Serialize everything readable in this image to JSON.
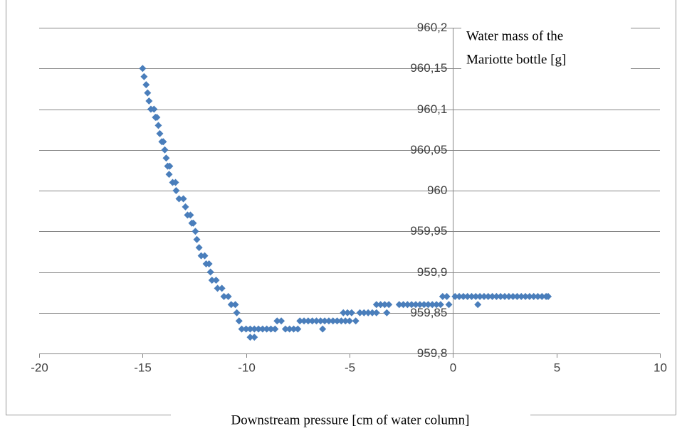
{
  "chart_data": {
    "type": "scatter",
    "x_label": "Downstream pressure [cm of water column]",
    "y_label": [
      "Water mass of the",
      "Mariotte bottle [g]"
    ],
    "color": "#4a7ebb",
    "xlim": [
      -20,
      10
    ],
    "xticks": [
      -20,
      -15,
      -10,
      -5,
      0,
      5,
      10
    ],
    "ylim": [
      959.8,
      960.2
    ],
    "yticks": [
      {
        "value": 959.8,
        "label": "959,8"
      },
      {
        "value": 959.85,
        "label": "959,85"
      },
      {
        "value": 959.9,
        "label": "959,9"
      },
      {
        "value": 959.95,
        "label": "959,95"
      },
      {
        "value": 960,
        "label": "960"
      },
      {
        "value": 960.05,
        "label": "960,05"
      },
      {
        "value": 960.1,
        "label": "960,1"
      },
      {
        "value": 960.15,
        "label": "960,15"
      },
      {
        "value": 960.2,
        "label": "960,2"
      }
    ],
    "grid": true,
    "x": [
      -15.0,
      -14.93,
      -14.83,
      -14.76,
      -14.69,
      -14.6,
      -14.45,
      -14.38,
      -14.31,
      -14.24,
      -14.17,
      -14.07,
      -14.0,
      -13.93,
      -13.86,
      -13.79,
      -13.69,
      -13.72,
      -13.55,
      -13.41,
      -13.38,
      -13.24,
      -13.03,
      -12.93,
      -12.83,
      -12.69,
      -12.62,
      -12.55,
      -12.45,
      -12.38,
      -12.27,
      -12.17,
      -12.0,
      -11.93,
      -11.79,
      -11.72,
      -11.65,
      -11.45,
      -11.38,
      -11.17,
      -11.07,
      -10.86,
      -10.72,
      -10.52,
      -10.45,
      -10.34,
      -10.21,
      -10.0,
      -9.8,
      -9.6,
      -9.8,
      -9.6,
      -9.4,
      -9.2,
      -9.0,
      -8.8,
      -8.6,
      -8.1,
      -7.9,
      -7.7,
      -7.5,
      -6.3,
      -8.5,
      -8.3,
      -7.4,
      -7.2,
      -7.0,
      -6.8,
      -6.6,
      -6.4,
      -6.2,
      -6.0,
      -5.8,
      -5.6,
      -5.4,
      -5.2,
      -5.0,
      -4.7,
      -5.3,
      -5.1,
      -4.9,
      -4.5,
      -4.3,
      -4.1,
      -3.9,
      -3.7,
      -3.2,
      -3.7,
      -3.5,
      -3.3,
      -3.1,
      -2.6,
      -2.4,
      -2.2,
      -2.0,
      -1.8,
      -1.6,
      -1.4,
      -1.2,
      -1.0,
      -0.8,
      -0.6,
      -0.2,
      1.2,
      -0.5,
      -0.3,
      0.1,
      0.3,
      0.5,
      0.7,
      0.9,
      1.1,
      1.3,
      1.5,
      1.7,
      1.9,
      2.1,
      2.3,
      2.5,
      2.7,
      2.9,
      3.1,
      3.3,
      3.5,
      3.7,
      3.9,
      4.1,
      4.3,
      4.5,
      4.6
    ],
    "values": [
      960.15,
      960.14,
      960.13,
      960.12,
      960.11,
      960.1,
      960.1,
      960.09,
      960.09,
      960.08,
      960.07,
      960.06,
      960.06,
      960.05,
      960.04,
      960.03,
      960.03,
      960.02,
      960.01,
      960.01,
      960.0,
      959.99,
      959.99,
      959.98,
      959.97,
      959.97,
      959.96,
      959.96,
      959.95,
      959.94,
      959.93,
      959.92,
      959.92,
      959.91,
      959.91,
      959.9,
      959.89,
      959.89,
      959.88,
      959.88,
      959.87,
      959.87,
      959.86,
      959.86,
      959.85,
      959.84,
      959.83,
      959.83,
      959.82,
      959.82,
      959.83,
      959.83,
      959.83,
      959.83,
      959.83,
      959.83,
      959.83,
      959.83,
      959.83,
      959.83,
      959.83,
      959.83,
      959.84,
      959.84,
      959.84,
      959.84,
      959.84,
      959.84,
      959.84,
      959.84,
      959.84,
      959.84,
      959.84,
      959.84,
      959.84,
      959.84,
      959.84,
      959.84,
      959.85,
      959.85,
      959.85,
      959.85,
      959.85,
      959.85,
      959.85,
      959.85,
      959.85,
      959.86,
      959.86,
      959.86,
      959.86,
      959.86,
      959.86,
      959.86,
      959.86,
      959.86,
      959.86,
      959.86,
      959.86,
      959.86,
      959.86,
      959.86,
      959.86,
      959.86,
      959.87,
      959.87,
      959.87,
      959.87,
      959.87,
      959.87,
      959.87,
      959.87,
      959.87,
      959.87,
      959.87,
      959.87,
      959.87,
      959.87,
      959.87,
      959.87,
      959.87,
      959.87,
      959.87,
      959.87,
      959.87,
      959.87,
      959.87,
      959.87,
      959.87,
      959.87
    ]
  }
}
